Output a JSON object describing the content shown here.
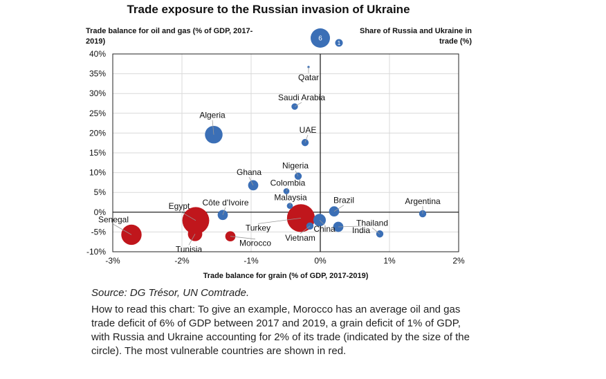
{
  "chart_data": {
    "type": "scatter",
    "title": "Trade exposure to the Russian invasion of Ukraine",
    "ylabel": "Trade balance for oil and gas (% of GDP, 2017-2019)",
    "xlabel": "Trade balance for grain (% of GDP, 2017-2019)",
    "size_legend_label": "Share of Russia and Ukraine in trade (%)",
    "size_legend": [
      {
        "label": "6",
        "value": 6
      },
      {
        "label": "1",
        "value": 1
      }
    ],
    "xlim": [
      -3,
      2
    ],
    "ylim": [
      -10,
      40
    ],
    "x_ticks": [
      {
        "value": -3,
        "label": "-3%"
      },
      {
        "value": -2,
        "label": "-2%"
      },
      {
        "value": -1,
        "label": "-1%"
      },
      {
        "value": 0,
        "label": "0%"
      },
      {
        "value": 1,
        "label": "1%"
      },
      {
        "value": 2,
        "label": "2%"
      }
    ],
    "y_ticks": [
      {
        "value": 40,
        "label": "40%"
      },
      {
        "value": 35,
        "label": "35%"
      },
      {
        "value": 30,
        "label": "30%"
      },
      {
        "value": 25,
        "label": "25%"
      },
      {
        "value": 20,
        "label": "20%"
      },
      {
        "value": 15,
        "label": "15%"
      },
      {
        "value": 10,
        "label": "10%"
      },
      {
        "value": 5,
        "label": "5%"
      },
      {
        "value": 0,
        "label": "0%"
      },
      {
        "value": -5,
        "label": "-5%"
      },
      {
        "value": -10,
        "label": "-10%"
      }
    ],
    "grid": true,
    "colors": {
      "vulnerable": "#c0161c",
      "other": "#3b6fb6"
    },
    "points": [
      {
        "name": "Qatar",
        "x": -0.17,
        "y": 36.7,
        "size": 0.1,
        "vulnerable": false
      },
      {
        "name": "Saudi Arabia",
        "x": -0.37,
        "y": 26.7,
        "size": 0.8,
        "vulnerable": false
      },
      {
        "name": "Algeria",
        "x": -1.54,
        "y": 19.6,
        "size": 6.0,
        "vulnerable": false
      },
      {
        "name": "UAE",
        "x": -0.22,
        "y": 17.6,
        "size": 1.0,
        "vulnerable": false
      },
      {
        "name": "Nigeria",
        "x": -0.32,
        "y": 9.1,
        "size": 1.0,
        "vulnerable": false
      },
      {
        "name": "Ghana",
        "x": -0.97,
        "y": 6.8,
        "size": 2.0,
        "vulnerable": false
      },
      {
        "name": "Colombia",
        "x": -0.49,
        "y": 5.3,
        "size": 0.7,
        "vulnerable": false
      },
      {
        "name": "Malaysia",
        "x": -0.44,
        "y": 1.6,
        "size": 0.7,
        "vulnerable": false
      },
      {
        "name": "Argentina",
        "x": 1.48,
        "y": -0.4,
        "size": 1.0,
        "vulnerable": false
      },
      {
        "name": "Brazil",
        "x": 0.2,
        "y": 0.2,
        "size": 2.0,
        "vulnerable": false
      },
      {
        "name": "Côte d'Ivoire",
        "x": -1.41,
        "y": -0.7,
        "size": 2.0,
        "vulnerable": false
      },
      {
        "name": "China",
        "x": -0.01,
        "y": -2.0,
        "size": 3.0,
        "vulnerable": false
      },
      {
        "name": "Vietnam",
        "x": -0.15,
        "y": -3.5,
        "size": 1.0,
        "vulnerable": false
      },
      {
        "name": "India",
        "x": 0.26,
        "y": -3.7,
        "size": 2.0,
        "vulnerable": false
      },
      {
        "name": "Thailand",
        "x": 0.86,
        "y": -5.5,
        "size": 1.0,
        "vulnerable": false
      },
      {
        "name": "Turkey",
        "x": -0.28,
        "y": -1.5,
        "size": 15.0,
        "vulnerable": true
      },
      {
        "name": "Egypt",
        "x": -1.8,
        "y": -2.1,
        "size": 14.0,
        "vulnerable": true
      },
      {
        "name": "Senegal",
        "x": -2.73,
        "y": -5.7,
        "size": 8.0,
        "vulnerable": true
      },
      {
        "name": "Tunisia",
        "x": -1.81,
        "y": -5.5,
        "size": 4.0,
        "vulnerable": true
      },
      {
        "name": "Morocco",
        "x": -1.3,
        "y": -6.1,
        "size": 2.0,
        "vulnerable": true
      }
    ]
  },
  "source": "Source: DG Trésor, UN Comtrade.",
  "note": "How to read this chart: To give an example, Morocco has an average oil and gas trade deficit of 6% of GDP between 2017 and 2019, a grain deficit of 1% of GDP, with Russia and Ukraine accounting for 2% of its trade (indicated by the size of the circle). The most vulnerable countries are shown in red."
}
